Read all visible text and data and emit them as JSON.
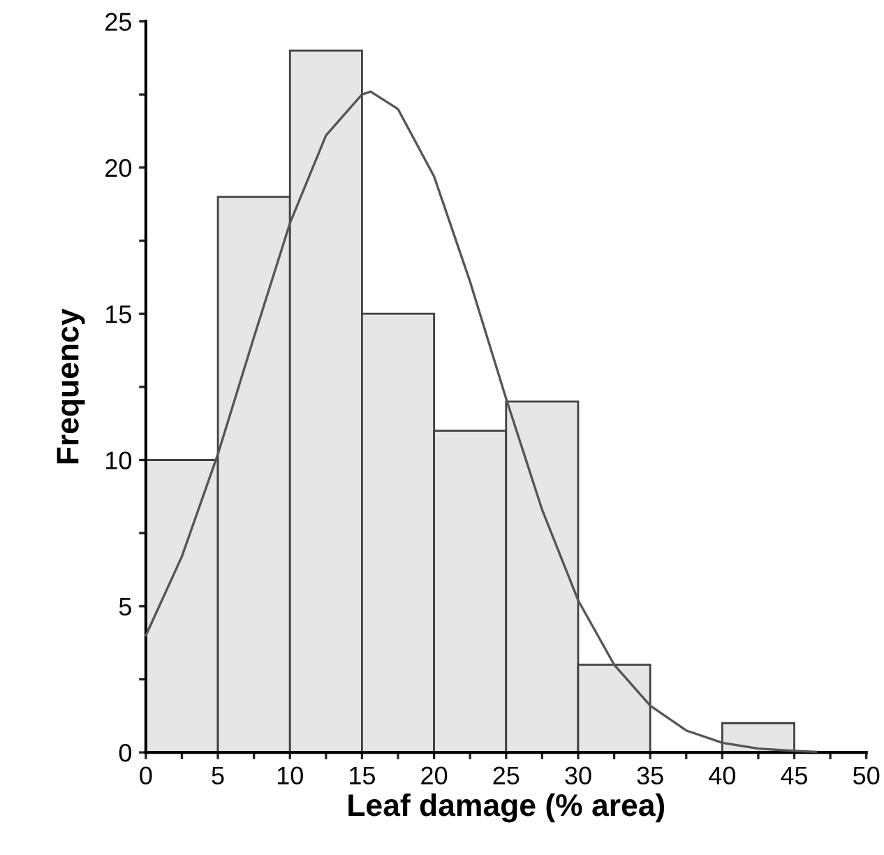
{
  "chart_data": {
    "type": "histogram",
    "xlabel": "Leaf damage (% area)",
    "ylabel": "Frequency",
    "bins": [
      0,
      5,
      10,
      15,
      20,
      25,
      30,
      35,
      40,
      45
    ],
    "values": [
      10,
      19,
      24,
      15,
      11,
      12,
      3,
      0,
      1
    ],
    "color": "#e6e6e6",
    "series": [
      {
        "type": "line",
        "color": "#555555",
        "x": [
          0,
          2.5,
          5,
          7.5,
          10,
          12.5,
          15,
          15.6,
          17.5,
          20,
          22.5,
          25,
          27.5,
          30,
          32.5,
          35,
          37.5,
          40,
          42.5,
          45,
          46.5
        ],
        "values": [
          4.0,
          6.7,
          10.2,
          14.2,
          18.1,
          21.1,
          22.5,
          22.6,
          22.0,
          19.7,
          16.1,
          12.1,
          8.3,
          5.2,
          3.0,
          1.6,
          0.75,
          0.33,
          0.13,
          0.05,
          0.02
        ]
      }
    ],
    "xlim": [
      0,
      50
    ],
    "ylim": [
      0,
      25
    ],
    "xticks": [
      0,
      {
        "value": 2.5,
        "label": null
      },
      5,
      {
        "value": 7.5,
        "label": null
      },
      10,
      {
        "value": 12.5,
        "label": null
      },
      15,
      {
        "value": 17.5,
        "label": null
      },
      20,
      {
        "value": 22.5,
        "label": null
      },
      25,
      {
        "value": 27.5,
        "label": null
      },
      30,
      {
        "value": 32.5,
        "label": null
      },
      35,
      {
        "value": 37.5,
        "label": null
      },
      40,
      {
        "value": 42.5,
        "label": null
      },
      45,
      {
        "value": 47.5,
        "label": null
      },
      50
    ],
    "yticks": [
      0,
      {
        "value": 2.5,
        "label": null
      },
      5,
      {
        "value": 7.5,
        "label": null
      },
      10,
      {
        "value": 12.5,
        "label": null
      },
      15,
      {
        "value": 17.5,
        "label": null
      },
      20,
      {
        "value": 22.5,
        "label": null
      },
      25
    ],
    "grid": false,
    "legend": false
  }
}
